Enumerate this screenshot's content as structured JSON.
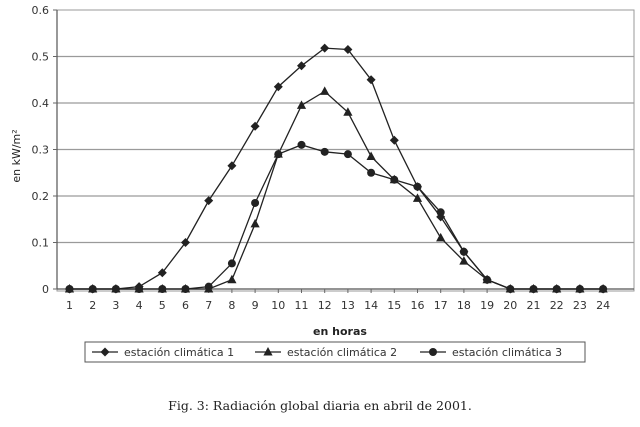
{
  "chart_data": {
    "type": "line",
    "ylabel": "en kW/m²",
    "xlabel": "en horas",
    "x": [
      1,
      2,
      3,
      4,
      5,
      6,
      7,
      8,
      9,
      10,
      11,
      12,
      13,
      14,
      15,
      16,
      17,
      18,
      19,
      20,
      21,
      22,
      23,
      24
    ],
    "ylim": [
      0,
      0.6
    ],
    "yticks": [
      "0",
      "0.1",
      "0.2",
      "0.3",
      "0.4",
      "0.5",
      "0.6"
    ],
    "grid": "horizontal",
    "legend_position": "bottom",
    "series": [
      {
        "name": "estación climática 1",
        "marker": "diamond",
        "values": [
          0,
          0,
          0,
          0.005,
          0.035,
          0.1,
          0.19,
          0.265,
          0.35,
          0.435,
          0.48,
          0.518,
          0.515,
          0.45,
          0.32,
          0.22,
          0.155,
          0.08,
          0.02,
          0,
          0,
          0,
          0,
          0
        ]
      },
      {
        "name": "estación climática 2",
        "marker": "triangle",
        "values": [
          0,
          0,
          0,
          0,
          0,
          0,
          0,
          0.02,
          0.14,
          0.29,
          0.395,
          0.425,
          0.38,
          0.285,
          0.235,
          0.195,
          0.11,
          0.06,
          0.02,
          0,
          0,
          0,
          0,
          0
        ]
      },
      {
        "name": "estación climática 3",
        "marker": "circle",
        "values": [
          0,
          0,
          0,
          0,
          0,
          0,
          0.005,
          0.055,
          0.185,
          0.29,
          0.31,
          0.295,
          0.29,
          0.25,
          0.235,
          0.22,
          0.165,
          0.08,
          0.02,
          0,
          0,
          0,
          0,
          0
        ]
      }
    ]
  },
  "caption": "Fig. 3: Radiación global diaria en abril de 2001."
}
